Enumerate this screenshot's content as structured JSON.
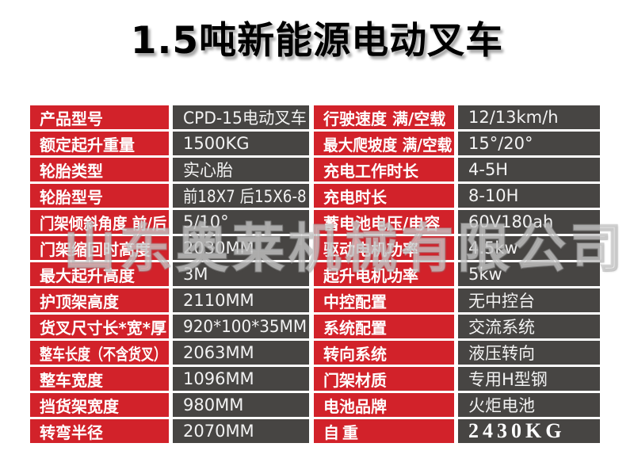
{
  "title": "1.5吨新能源电动叉车",
  "watermark": "山东奥莱机械有限公司",
  "colors": {
    "label_bg": "#d2222a",
    "value_bg": "#474543",
    "grid_gap": "#ffffff",
    "title_color": "#000000",
    "cell_text": "#ffffff"
  },
  "spec_table": {
    "left_rows": [
      {
        "label": "产品型号",
        "value": "CPD-15电动叉车"
      },
      {
        "label": "额定起升重量",
        "value": "1500KG"
      },
      {
        "label": "轮胎类型",
        "value": "实心胎"
      },
      {
        "label": "轮胎型号",
        "value": "前18X7 后15X6-8"
      },
      {
        "label": "门架倾斜角度 前/后",
        "value": "5/10°"
      },
      {
        "label": "门架缩回时高度",
        "value": "2030MM"
      },
      {
        "label": "最大起升高度",
        "value": "3M"
      },
      {
        "label": "护顶架高度",
        "value": "2110MM"
      },
      {
        "label": "货叉尺寸长*宽*厚",
        "value": "920*100*35MM"
      },
      {
        "label": "整车长度（不含货叉）",
        "value": "2063MM"
      },
      {
        "label": "整车宽度",
        "value": "1096MM"
      },
      {
        "label": "挡货架宽度",
        "value": "980MM"
      },
      {
        "label": "转弯半径",
        "value": "2070MM"
      }
    ],
    "right_rows": [
      {
        "label": "行驶速度 满/空载",
        "value": "12/13km/h"
      },
      {
        "label": "最大爬坡度 满/空载",
        "value": "15°/20°"
      },
      {
        "label": "充电工作时长",
        "value": "4-5H"
      },
      {
        "label": "充电时长",
        "value": "8-10H"
      },
      {
        "label": "蓄电池电压/电容",
        "value": "60V180ah"
      },
      {
        "label": "驱动电机功率",
        "value": "4.5kw"
      },
      {
        "label": "起升电机功率",
        "value": "5kw"
      },
      {
        "label": "中控配置",
        "value": "无中控台"
      },
      {
        "label": "系统配置",
        "value": "交流系统"
      },
      {
        "label": "转向系统",
        "value": "液压转向"
      },
      {
        "label": "门架材质",
        "value": "专用H型钢"
      },
      {
        "label": "电池品牌",
        "value": "火炬电池"
      },
      {
        "label": "自重",
        "value": "2430KG",
        "emphasis": true
      }
    ]
  }
}
